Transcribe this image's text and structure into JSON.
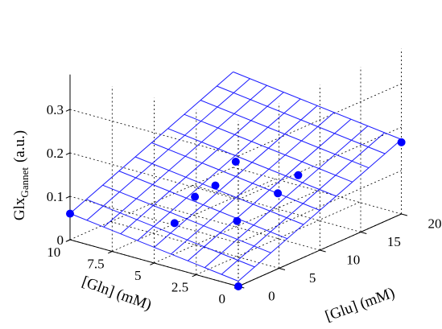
{
  "chart_data": {
    "type": "scatter",
    "subtype": "3d-scatter-with-fitted-plane",
    "title": "",
    "xlabel": "[Glu] (mM)",
    "ylabel": "[Gln] (mM)",
    "zlabel_main": "Glx",
    "zlabel_sub": "Gannet",
    "zlabel_unit": "(a.u.)",
    "xlim": [
      0,
      20
    ],
    "ylim": [
      0,
      10
    ],
    "zlim": [
      0,
      0.38
    ],
    "x_ticks": [
      "0",
      "5",
      "10",
      "15",
      "20"
    ],
    "y_ticks": [
      "0",
      "2.5",
      "5",
      "7.5",
      "10"
    ],
    "z_ticks": [
      "0",
      "0.1",
      "0.2",
      "0.3"
    ],
    "grid": true,
    "plane": {
      "intercept": 0.012,
      "x_coef": 0.00797,
      "y_coef": 0.00483,
      "mesh_divisions": 10,
      "color": "#1a1aff"
    },
    "points": [
      {
        "x": 0.0,
        "y": 0.0,
        "z": 0.0
      },
      {
        "x": 0.0,
        "y": 10.0,
        "z": 0.06
      },
      {
        "x": 2.5,
        "y": 5.0,
        "z": 0.071
      },
      {
        "x": 5.0,
        "y": 2.5,
        "z": 0.082
      },
      {
        "x": 5.0,
        "y": 5.0,
        "z": 0.111
      },
      {
        "x": 7.5,
        "y": 5.0,
        "z": 0.116
      },
      {
        "x": 10.0,
        "y": 2.5,
        "z": 0.104
      },
      {
        "x": 10.0,
        "y": 5.0,
        "z": 0.15
      },
      {
        "x": 12.5,
        "y": 2.5,
        "z": 0.125
      },
      {
        "x": 20.0,
        "y": 0.0,
        "z": 0.165
      }
    ],
    "point_color": "#0000ff"
  }
}
